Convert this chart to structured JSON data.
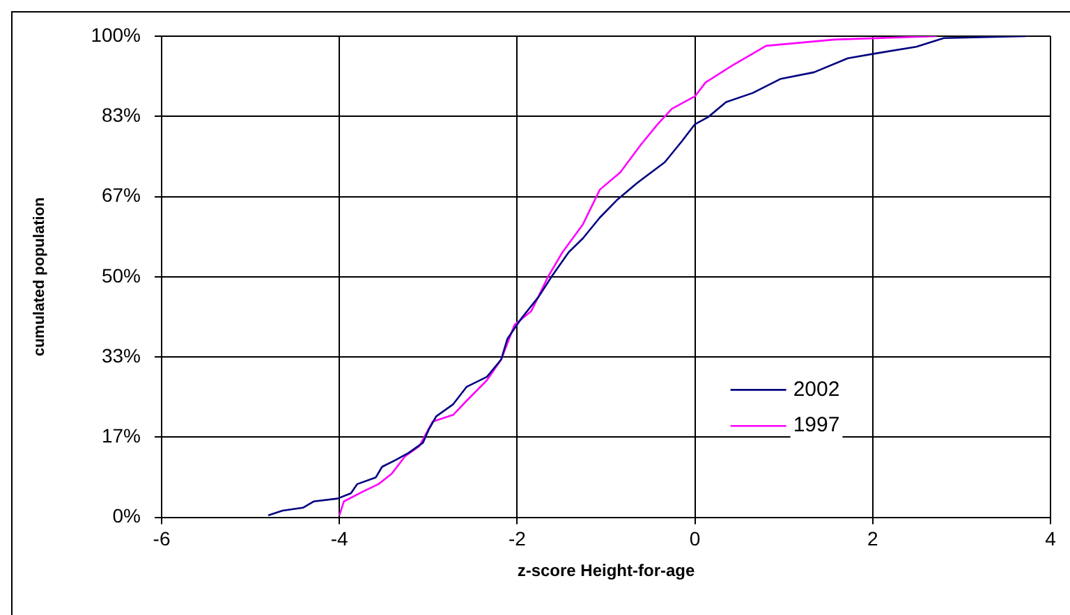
{
  "chart_data": {
    "type": "line",
    "xlabel": "z-score Height-for-age",
    "ylabel": "cumulated population",
    "xlim": [
      -6,
      4
    ],
    "xticks": [
      -6,
      -4,
      -2,
      0,
      2,
      4
    ],
    "ylim": [
      0,
      100
    ],
    "yticks": [
      {
        "value": 0,
        "label": "0%"
      },
      {
        "value": 16.67,
        "label": "17%"
      },
      {
        "value": 33.33,
        "label": "33%"
      },
      {
        "value": 50,
        "label": "50%"
      },
      {
        "value": 66.67,
        "label": "67%"
      },
      {
        "value": 83.33,
        "label": "83%"
      },
      {
        "value": 100,
        "label": "100%"
      }
    ],
    "grid": true,
    "legend": "right",
    "marker": "none",
    "line_style": "solid",
    "series": [
      {
        "name": "2002",
        "color": "#000080",
        "x": [
          -4.8,
          -4.64,
          -4.41,
          -4.29,
          -4.02,
          -3.87,
          -3.8,
          -3.59,
          -3.52,
          -3.37,
          -3.22,
          -3.06,
          -2.99,
          -2.91,
          -2.72,
          -2.57,
          -2.34,
          -2.18,
          -2.11,
          -1.95,
          -1.76,
          -1.61,
          -1.42,
          -1.26,
          -1.07,
          -0.88,
          -0.65,
          -0.34,
          -0.15,
          0.0,
          0.15,
          0.35,
          0.65,
          0.96,
          1.34,
          1.72,
          2.03,
          2.49,
          2.8,
          3.72
        ],
        "values": [
          0.4,
          1.4,
          2.0,
          3.3,
          3.9,
          5.0,
          6.9,
          8.3,
          10.5,
          11.9,
          13.4,
          15.5,
          18.4,
          21.0,
          23.5,
          27.1,
          29.2,
          32.8,
          37.1,
          41.4,
          45.8,
          50.1,
          55.1,
          58.0,
          62.3,
          65.9,
          69.5,
          73.8,
          78.1,
          81.7,
          83.2,
          86.3,
          88.2,
          91.1,
          92.5,
          95.4,
          96.4,
          97.8,
          99.6,
          100
        ]
      },
      {
        "name": "1997",
        "color": "#ff00ff",
        "x": [
          -4.0,
          -3.95,
          -3.72,
          -3.56,
          -3.41,
          -3.26,
          -3.1,
          -2.95,
          -2.72,
          -2.57,
          -2.34,
          -2.18,
          -2.03,
          -1.84,
          -1.65,
          -1.49,
          -1.26,
          -1.07,
          -0.84,
          -0.61,
          -0.42,
          -0.26,
          0.0,
          0.12,
          0.42,
          0.69,
          0.8,
          1.57,
          2.72
        ],
        "values": [
          0.4,
          3.3,
          5.5,
          6.9,
          9.1,
          12.7,
          14.8,
          19.9,
          21.3,
          24.2,
          28.5,
          32.8,
          40.0,
          42.9,
          50.1,
          55.1,
          60.9,
          68.1,
          71.7,
          77.4,
          81.7,
          84.9,
          87.5,
          90.4,
          93.9,
          96.8,
          98.0,
          99.3,
          100
        ]
      }
    ]
  }
}
